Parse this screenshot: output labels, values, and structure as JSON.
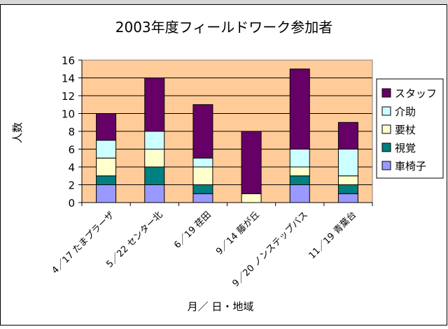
{
  "chart_data": {
    "type": "bar",
    "stacked": true,
    "title": "2003年度フィールドワーク参加者",
    "xlabel": "月／ 日・地域",
    "ylabel": "人数",
    "ylim": [
      0,
      16
    ],
    "ytick_step": 2,
    "grid": true,
    "legend_position": "right",
    "categories": [
      "4／17 たまプラーザ",
      "5／22 センター北",
      "6／19 荏田",
      "9／14 藤が丘",
      "9／20 ノンステップバス",
      "11／19 青葉台"
    ],
    "series": [
      {
        "name": "車椅子",
        "color": "#9999ff",
        "values": [
          2,
          2,
          1,
          0,
          2,
          1
        ]
      },
      {
        "name": "視覚",
        "color": "#008080",
        "values": [
          1,
          2,
          1,
          0,
          1,
          1
        ]
      },
      {
        "name": "要杖",
        "color": "#ffffcc",
        "values": [
          2,
          2,
          2,
          1,
          1,
          1
        ]
      },
      {
        "name": "介助",
        "color": "#ccffff",
        "values": [
          2,
          2,
          1,
          0,
          2,
          3
        ]
      },
      {
        "name": "スタッフ",
        "color": "#660066",
        "values": [
          3,
          6,
          6,
          7,
          9,
          3
        ]
      }
    ],
    "plot_background": "#ffcc99"
  }
}
